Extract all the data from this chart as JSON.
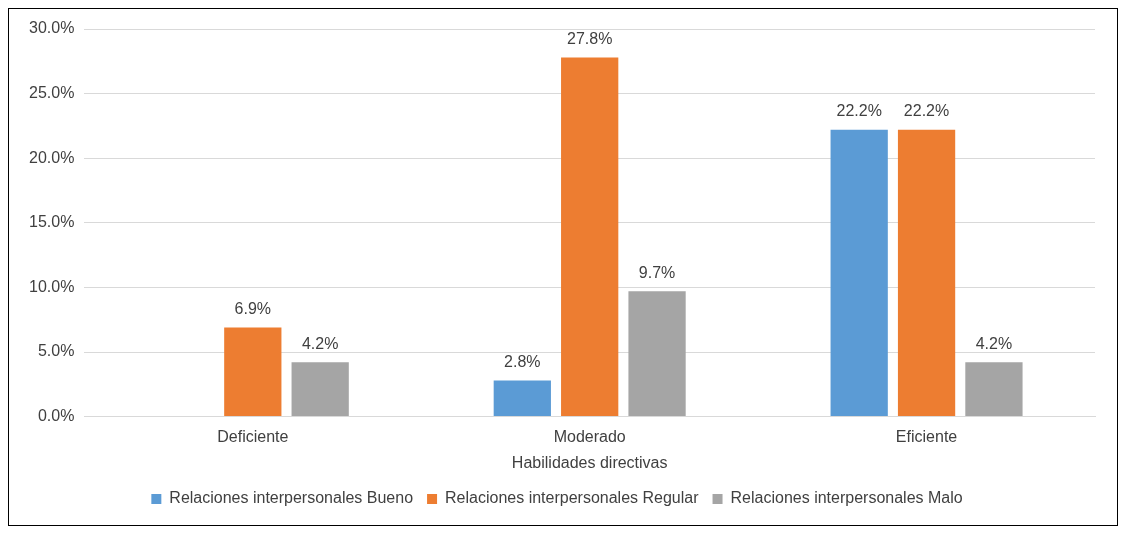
{
  "chart_data": {
    "type": "bar",
    "xlabel": "Habilidades directivas",
    "categories": [
      "Deficiente",
      "Moderado",
      "Eficiente"
    ],
    "series": [
      {
        "name": "Relaciones interpersonales Bueno",
        "color": "#5b9bd5",
        "values": [
          null,
          2.8,
          22.2
        ],
        "value_labels": [
          null,
          "2.8%",
          "22.2%"
        ]
      },
      {
        "name": "Relaciones interpersonales Regular",
        "color": "#ed7d31",
        "values": [
          6.9,
          27.8,
          22.2
        ],
        "value_labels": [
          "6.9%",
          "27.8%",
          "22.2%"
        ]
      },
      {
        "name": "Relaciones interpersonales Malo",
        "color": "#a5a5a5",
        "values": [
          4.2,
          9.7,
          4.2
        ],
        "value_labels": [
          "4.2%",
          "9.7%",
          "4.2%"
        ]
      }
    ],
    "ylim": [
      0,
      30
    ],
    "yticks": [
      {
        "value": 0,
        "label": "0.0%"
      },
      {
        "value": 5,
        "label": "5.0%"
      },
      {
        "value": 10,
        "label": "10.0%"
      },
      {
        "value": 15,
        "label": "15.0%"
      },
      {
        "value": 20,
        "label": "20.0%"
      },
      {
        "value": 25,
        "label": "25.0%"
      },
      {
        "value": 30,
        "label": "30.0%"
      }
    ],
    "grid": "y",
    "legend": "bottom"
  }
}
